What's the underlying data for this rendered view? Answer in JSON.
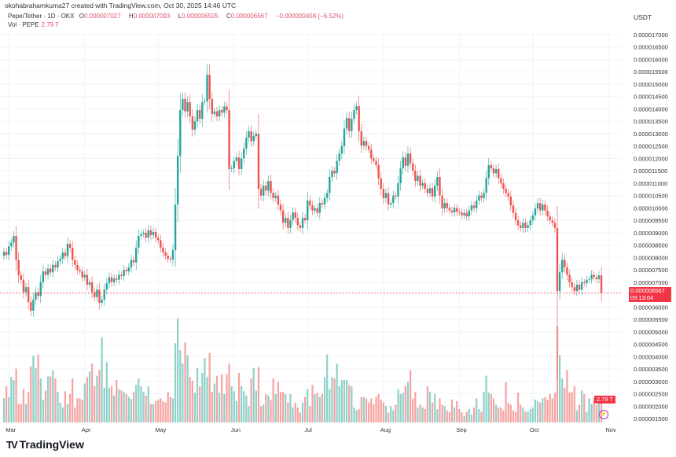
{
  "credit": "okohabrahamkuma27 created with TradingView.com, Oct 30, 2025 14:46 UTC",
  "legend": {
    "symbol": "Pepe/Tether · 1D · OKX",
    "open_label": "O",
    "open": "0.000007027",
    "high_label": "H",
    "high": "0.000007093",
    "low_label": "L",
    "low": "0.000006505",
    "close_label": "C",
    "close": "0.000006567",
    "change": "−0.000000458 (−6.52%)",
    "vol_label": "Vol · PEPE",
    "vol_value": "2.79 T"
  },
  "price_axis": {
    "unit": "USDT",
    "current_price": "0.000006567",
    "countdown": "09:13:04",
    "volume_tag": "2.79 T"
  },
  "colors": {
    "up": "#26a69a",
    "down": "#ef5350",
    "up_volume": "#8fd0c9",
    "down_volume": "#f5a3a1",
    "price_tag": "#f23645"
  },
  "logo_text": "TradingView",
  "chart_data": {
    "type": "candlestick",
    "title": "Pepe/Tether · 1D · OKX",
    "ylabel": "USDT",
    "ylim": [
      1.5e-06,
      1.7e-05
    ],
    "grid": true,
    "y_ticks": [
      "0.000017000",
      "0.000016500",
      "0.000016000",
      "0.000015500",
      "0.000015000",
      "0.000014500",
      "0.000014000",
      "0.000013500",
      "0.000013000",
      "0.000012500",
      "0.000012000",
      "0.000011500",
      "0.000011000",
      "0.000010500",
      "0.000010000",
      "0.000009500",
      "0.000009000",
      "0.000008500",
      "0.000008000",
      "0.000007500",
      "0.000007000",
      "0.000006000",
      "0.000005500",
      "0.000005000",
      "0.000004500",
      "0.000004000",
      "0.000003500",
      "0.000003000",
      "0.000002500",
      "0.000002000",
      "0.000001500"
    ],
    "x_ticks": [
      {
        "label": "Mar",
        "date": "2025-03-01"
      },
      {
        "label": "Apr",
        "date": "2025-04-01"
      },
      {
        "label": "May",
        "date": "2025-05-01"
      },
      {
        "label": "Jun",
        "date": "2025-06-01"
      },
      {
        "label": "Jul",
        "date": "2025-07-01"
      },
      {
        "label": "Aug",
        "date": "2025-08-01"
      },
      {
        "label": "Sep",
        "date": "2025-09-01"
      },
      {
        "label": "Oct",
        "date": "2025-10-01"
      },
      {
        "label": "Nov",
        "date": "2025-11-01"
      }
    ],
    "close": [
      8.23e-06,
      8.1e-06,
      8.45e-06,
      8.6e-06,
      8.87e-06,
      7.9e-06,
      7.28e-06,
      7.1e-06,
      6.6e-06,
      6.8e-06,
      6.2e-06,
      5.85e-06,
      6.3e-06,
      6.6e-06,
      6.45e-06,
      7e-06,
      7.44e-06,
      7.3e-06,
      7.55e-06,
      7.4e-06,
      7.7e-06,
      7.6e-06,
      7.85e-06,
      7.95e-06,
      8.2e-06,
      8.05e-06,
      8.55e-06,
      8.39e-06,
      7.9e-06,
      7.7e-06,
      7.5e-06,
      7.44e-06,
      7.2e-06,
      7.3e-06,
      6.9e-06,
      7e-06,
      6.6e-06,
      6.4e-06,
      6.7e-06,
      6.17e-06,
      6.3e-06,
      6.7e-06,
      6.96e-06,
      7.2e-06,
      7e-06,
      7.15e-06,
      7.1e-06,
      7.3e-06,
      7.25e-06,
      7.5e-06,
      7.44e-06,
      7.6e-06,
      7.9e-06,
      7.8e-06,
      8.4e-06,
      8.87e-06,
      8.95e-06,
      9e-06,
      8.8e-06,
      9.1e-06,
      8.9e-06,
      9.03e-06,
      8.8e-06,
      8.7e-06,
      8.4e-06,
      8.2e-06,
      8.07e-06,
      7.95e-06,
      7.91e-06,
      8.3e-06,
      1.014e-05,
      1.21e-05,
      1.395e-05,
      1.44e-05,
      1.39e-05,
      1.427e-05,
      1.37e-05,
      1.316e-05,
      1.35e-05,
      1.395e-05,
      1.36e-05,
      1.427e-05,
      1.43e-05,
      1.538e-05,
      1.44e-05,
      1.379e-05,
      1.39e-05,
      1.37e-05,
      1.395e-05,
      1.385e-05,
      1.41e-05,
      1.395e-05,
      1.157e-05,
      1.16e-05,
      1.19e-05,
      1.204e-05,
      1.157e-05,
      1.2e-05,
      1.24e-05,
      1.284e-05,
      1.31e-05,
      1.27e-05,
      1.29e-05,
      1.3e-05,
      1.077e-05,
      1.05e-05,
      1.09e-05,
      1.07e-05,
      1.109e-05,
      1.061e-05,
      1.04e-05,
      1.05e-05,
      1.014e-05,
      9.9e-06,
      9.4e-06,
      9.6e-06,
      9.19e-06,
      9.5e-06,
      9.82e-06,
      9.6e-06,
      9.3e-06,
      9.19e-06,
      9.6e-06,
      9.5e-06,
      1.03e-05,
      1.01e-05,
      9.9e-06,
      9.98e-06,
      9.8e-06,
      1.02e-05,
      1.014e-05,
      1.04e-05,
      1.06e-05,
      1.125e-05,
      1.15e-05,
      1.14e-05,
      1.19e-05,
      1.22e-05,
      1.25e-05,
      1.32e-05,
      1.363e-05,
      1.31e-05,
      1.36e-05,
      1.395e-05,
      1.411e-05,
      1.31e-05,
      1.252e-05,
      1.27e-05,
      1.25e-05,
      1.236e-05,
      1.2e-05,
      1.19e-05,
      1.173e-05,
      1.12e-05,
      1.077e-05,
      1.04e-05,
      1.06e-05,
      1.014e-05,
      1.02e-05,
      1.05e-05,
      1.046e-05,
      1.1e-05,
      1.16e-05,
      1.204e-05,
      1.17e-05,
      1.22e-05,
      1.18e-05,
      1.15e-05,
      1.109e-05,
      1.13e-05,
      1.09e-05,
      1.1e-05,
      1.077e-05,
      1.06e-05,
      1.08e-05,
      1.046e-05,
      1.09e-05,
      1.125e-05,
      1.05e-05,
      9.98e-06,
      1.02e-05,
      1e-05,
      9.9e-06,
      9.82e-06,
      1e-05,
      9.85e-06,
      9.82e-06,
      9.7e-06,
      9.8e-06,
      9.66e-06,
      9.9e-06,
      1.01e-05,
      1e-05,
      1.03e-05,
      1.05e-05,
      1.04e-05,
      1.061e-05,
      1.12e-05,
      1.173e-05,
      1.16e-05,
      1.14e-05,
      1.157e-05,
      1.12e-05,
      1.1e-05,
      1.077e-05,
      1.06e-05,
      1.046e-05,
      1.01e-05,
      9.8e-06,
      9.5e-06,
      9.3e-06,
      9.19e-06,
      9.4e-06,
      9.19e-06,
      9.3e-06,
      9.5e-06,
      9.7e-06,
      9.98e-06,
      1.02e-05,
      9.9e-06,
      1.014e-05,
      9.9e-06,
      9.66e-06,
      9.5e-06,
      9.4e-06,
      9.19e-06,
      6.64e-06,
      7.4e-06,
      7.91e-06,
      7.6e-06,
      7.3e-06,
      7e-06,
      6.8e-06,
      6.64e-06,
      6.9e-06,
      6.7e-06,
      7e-06,
      6.96e-06,
      7.1e-06,
      7.12e-06,
      7.3e-06,
      7.2e-06,
      7.12e-06,
      7.28e-06,
      6.567e-06
    ],
    "volume_T": [
      3.4,
      5.1,
      3.6,
      6.4,
      6.0,
      7.6,
      2.6,
      2.6,
      4.7,
      2.6,
      4.3,
      7.9,
      9.4,
      7.7,
      9.6,
      6.2,
      3.2,
      4.5,
      6.5,
      6.5,
      7.4,
      6.2,
      4.3,
      2.8,
      2.1,
      4.4,
      2.6,
      4.0,
      6.2,
      2.1,
      3.4,
      3.4,
      3.2,
      5.5,
      6.4,
      7.2,
      8.3,
      5.1,
      6.6,
      7.4,
      12.0,
      4.9,
      8.5,
      4.9,
      5.1,
      3.8,
      6.0,
      4.7,
      4.5,
      4.3,
      4.0,
      3.6,
      3.3,
      4.3,
      5.3,
      6.2,
      5.1,
      4.3,
      3.8,
      5.1,
      2.6,
      2.6,
      3.0,
      3.2,
      3.4,
      3.0,
      2.8,
      4.3,
      3.6,
      3.4,
      11.2,
      14.7,
      10.2,
      8.3,
      11.3,
      9.5,
      6.4,
      5.9,
      4.2,
      7.7,
      5.1,
      7.0,
      9.1,
      6.4,
      9.8,
      4.3,
      5.5,
      6.6,
      4.2,
      6.8,
      4.0,
      6.8,
      8.3,
      5.1,
      4.4,
      3.0,
      7.0,
      5.1,
      4.4,
      3.8,
      2.3,
      6.2,
      7.7,
      4.5,
      7.8,
      2.3,
      2.5,
      4.0,
      3.8,
      3.2,
      6.2,
      4.0,
      5.7,
      4.3,
      4.3,
      4.0,
      2.8,
      4.0,
      2.1,
      2.8,
      2.1,
      1.4,
      2.8,
      3.6,
      4.7,
      2.3,
      5.3,
      4.0,
      4.2,
      3.6,
      4.0,
      6.4,
      9.6,
      4.7,
      6.4,
      6.2,
      8.3,
      5.1,
      6.0,
      6.0,
      6.0,
      5.3,
      5.1,
      2.1,
      1.7,
      1.9,
      3.6,
      3.6,
      3.4,
      2.8,
      3.4,
      2.6,
      3.6,
      4.0,
      3.2,
      2.8,
      2.3,
      1.4,
      2.3,
      1.7,
      2.5,
      4.7,
      4.0,
      4.2,
      5.1,
      5.7,
      7.4,
      3.4,
      4.3,
      2.1,
      2.5,
      2.1,
      1.9,
      5.1,
      4.3,
      2.8,
      4.0,
      1.9,
      3.4,
      2.5,
      2.3,
      1.7,
      1.5,
      3.2,
      2.1,
      3.0,
      1.9,
      1.4,
      0.9,
      1.5,
      1.9,
      1.1,
      2.1,
      3.4,
      1.9,
      1.5,
      4.3,
      6.6,
      4.2,
      4.0,
      3.4,
      2.5,
      2.1,
      2.1,
      1.7,
      5.7,
      2.8,
      2.5,
      1.7,
      1.5,
      4.2,
      2.5,
      2.1,
      1.5,
      1.5,
      1.9,
      2.1,
      3.2,
      3.0,
      2.8,
      3.4,
      3.6,
      3.2,
      4.0,
      3.4,
      4.2,
      13.6,
      9.5,
      6.2,
      4.9,
      7.4,
      4.2,
      4.3,
      5.1,
      1.7,
      2.5,
      4.5,
      4.0,
      1.5,
      3.4,
      2.6,
      3.4,
      2.5,
      3.2,
      2.79
    ]
  }
}
